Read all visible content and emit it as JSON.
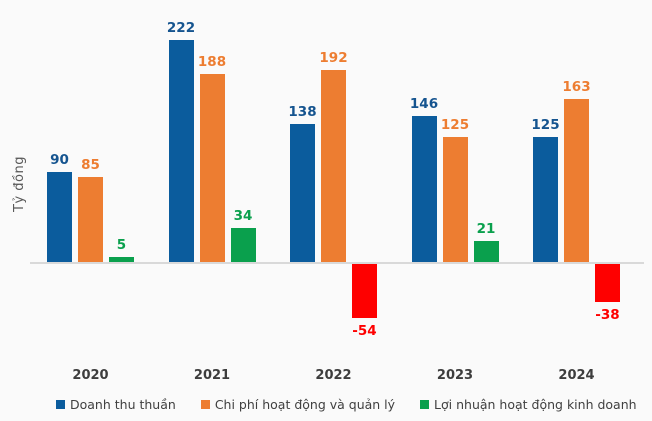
{
  "chart_data": {
    "type": "bar",
    "title": "",
    "xlabel": "",
    "ylabel": "Tỷ đồng",
    "categories": [
      "2020",
      "2021",
      "2022",
      "2023",
      "2024"
    ],
    "series": [
      {
        "name": "Doanh thu thuần",
        "color": "#0b5c9d",
        "label_color": "#15548f",
        "values": [
          90,
          222,
          138,
          146,
          125
        ]
      },
      {
        "name": "Chi phí hoạt động và quản lý",
        "color": "#ed7d31",
        "label_color": "#ed7d31",
        "values": [
          85,
          188,
          192,
          125,
          163
        ]
      },
      {
        "name": "Lợi nhuận hoạt động kinh doanh",
        "color": "#0aa04d",
        "label_color": "#0aa04d",
        "negative_color": "#fe0000",
        "negative_label_color": "#fe0000",
        "values": [
          5,
          34,
          -54,
          21,
          -38
        ]
      }
    ],
    "legend_position": "bottom",
    "grid": false,
    "background_color": "#fafafa",
    "axis_line_color": "#d9d9d9",
    "tick_label_color": "#3d3d3d",
    "ylim_implied": [
      -54,
      222
    ]
  }
}
